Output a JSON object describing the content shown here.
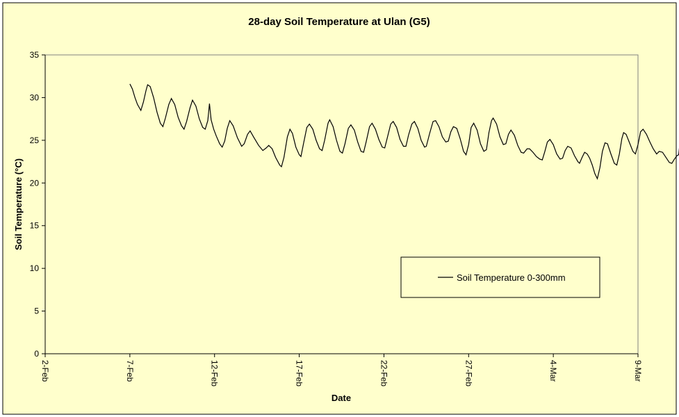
{
  "chart_data": {
    "type": "line",
    "title": "28-day  Soil Temperature at Ulan (G5)",
    "xlabel": "Date",
    "ylabel": "Soil Temperature (°C)",
    "y_ticks": [
      "0",
      "5",
      "10",
      "15",
      "20",
      "25",
      "30",
      "35"
    ],
    "ylim": [
      0,
      35
    ],
    "x_ticks": [
      "2-Feb",
      "7-Feb",
      "12-Feb",
      "17-Feb",
      "22-Feb",
      "27-Feb",
      "4-Mar",
      "9-Mar"
    ],
    "xlim_days": [
      0,
      35
    ],
    "grid": false,
    "legend_placement": "lower-right",
    "colors": {
      "page_background": "#FFFFCC",
      "plot_background": "#FFFFCC",
      "line": "#000000",
      "legend_background": "#FFFFCC"
    },
    "series": [
      {
        "name": "Soil Temperature 0-300mm",
        "points_day_temp": [
          [
            5.0,
            31.6
          ],
          [
            5.15,
            31.0
          ],
          [
            5.3,
            30.0
          ],
          [
            5.45,
            29.2
          ],
          [
            5.65,
            28.5
          ],
          [
            5.8,
            29.5
          ],
          [
            5.95,
            30.8
          ],
          [
            6.05,
            31.5
          ],
          [
            6.2,
            31.3
          ],
          [
            6.4,
            30.0
          ],
          [
            6.6,
            28.3
          ],
          [
            6.8,
            27.0
          ],
          [
            6.95,
            26.6
          ],
          [
            7.1,
            27.6
          ],
          [
            7.3,
            29.2
          ],
          [
            7.45,
            29.9
          ],
          [
            7.65,
            29.2
          ],
          [
            7.85,
            27.7
          ],
          [
            8.05,
            26.7
          ],
          [
            8.2,
            26.3
          ],
          [
            8.35,
            27.2
          ],
          [
            8.55,
            28.8
          ],
          [
            8.7,
            29.7
          ],
          [
            8.9,
            29.0
          ],
          [
            9.1,
            27.5
          ],
          [
            9.3,
            26.5
          ],
          [
            9.45,
            26.3
          ],
          [
            9.6,
            27.3
          ],
          [
            9.7,
            29.3
          ],
          [
            9.8,
            27.4
          ],
          [
            9.95,
            26.3
          ],
          [
            10.1,
            25.5
          ],
          [
            10.3,
            24.6
          ],
          [
            10.45,
            24.2
          ],
          [
            10.6,
            24.9
          ],
          [
            10.75,
            26.4
          ],
          [
            10.9,
            27.3
          ],
          [
            11.1,
            26.7
          ],
          [
            11.35,
            25.3
          ],
          [
            11.6,
            24.3
          ],
          [
            11.75,
            24.6
          ],
          [
            11.95,
            25.7
          ],
          [
            12.1,
            26.1
          ],
          [
            12.3,
            25.4
          ],
          [
            12.6,
            24.4
          ],
          [
            12.85,
            23.8
          ],
          [
            13.05,
            24.1
          ],
          [
            13.2,
            24.4
          ],
          [
            13.4,
            24.0
          ],
          [
            13.6,
            23.0
          ],
          [
            13.85,
            22.1
          ],
          [
            13.95,
            21.9
          ],
          [
            14.1,
            23.0
          ],
          [
            14.3,
            25.4
          ],
          [
            14.45,
            26.3
          ],
          [
            14.6,
            25.8
          ],
          [
            14.8,
            24.2
          ],
          [
            15.0,
            23.3
          ],
          [
            15.1,
            23.1
          ],
          [
            15.25,
            24.6
          ],
          [
            15.45,
            26.5
          ],
          [
            15.6,
            26.9
          ],
          [
            15.8,
            26.3
          ],
          [
            16.0,
            25.0
          ],
          [
            16.2,
            24.0
          ],
          [
            16.35,
            23.8
          ],
          [
            16.5,
            25.0
          ],
          [
            16.7,
            27.0
          ],
          [
            16.8,
            27.4
          ],
          [
            17.0,
            26.6
          ],
          [
            17.2,
            25.0
          ],
          [
            17.4,
            23.7
          ],
          [
            17.55,
            23.5
          ],
          [
            17.7,
            24.6
          ],
          [
            17.9,
            26.4
          ],
          [
            18.05,
            26.8
          ],
          [
            18.25,
            26.2
          ],
          [
            18.45,
            24.8
          ],
          [
            18.65,
            23.7
          ],
          [
            18.8,
            23.6
          ],
          [
            18.95,
            24.8
          ],
          [
            19.15,
            26.6
          ],
          [
            19.3,
            27.0
          ],
          [
            19.5,
            26.3
          ],
          [
            19.7,
            25.1
          ],
          [
            19.9,
            24.2
          ],
          [
            20.05,
            24.1
          ],
          [
            20.2,
            25.3
          ],
          [
            20.4,
            26.9
          ],
          [
            20.55,
            27.2
          ],
          [
            20.75,
            26.5
          ],
          [
            20.95,
            25.1
          ],
          [
            21.15,
            24.3
          ],
          [
            21.3,
            24.3
          ],
          [
            21.45,
            25.6
          ],
          [
            21.65,
            26.9
          ],
          [
            21.8,
            27.2
          ],
          [
            22.0,
            26.4
          ],
          [
            22.2,
            25.0
          ],
          [
            22.4,
            24.2
          ],
          [
            22.5,
            24.3
          ],
          [
            22.7,
            25.8
          ],
          [
            22.9,
            27.2
          ],
          [
            23.05,
            27.3
          ],
          [
            23.25,
            26.6
          ],
          [
            23.45,
            25.4
          ],
          [
            23.65,
            24.8
          ],
          [
            23.8,
            24.9
          ],
          [
            23.95,
            26.0
          ],
          [
            24.1,
            26.6
          ],
          [
            24.3,
            26.4
          ],
          [
            24.5,
            25.2
          ],
          [
            24.7,
            23.7
          ],
          [
            24.85,
            23.3
          ],
          [
            25.0,
            24.5
          ],
          [
            25.15,
            26.5
          ],
          [
            25.3,
            27.0
          ],
          [
            25.5,
            26.2
          ],
          [
            25.7,
            24.6
          ],
          [
            25.9,
            23.7
          ],
          [
            26.05,
            23.9
          ],
          [
            26.2,
            25.9
          ],
          [
            26.35,
            27.3
          ],
          [
            26.45,
            27.6
          ],
          [
            26.65,
            26.9
          ],
          [
            26.85,
            25.4
          ],
          [
            27.05,
            24.5
          ],
          [
            27.2,
            24.6
          ],
          [
            27.35,
            25.7
          ],
          [
            27.5,
            26.2
          ],
          [
            27.7,
            25.6
          ],
          [
            27.9,
            24.4
          ],
          [
            28.1,
            23.6
          ],
          [
            28.25,
            23.5
          ],
          [
            28.45,
            24.0
          ],
          [
            28.6,
            24.0
          ],
          [
            28.8,
            23.6
          ],
          [
            29.0,
            23.1
          ],
          [
            29.2,
            22.8
          ],
          [
            29.35,
            22.7
          ],
          [
            29.5,
            23.7
          ],
          [
            29.65,
            24.8
          ],
          [
            29.8,
            25.1
          ],
          [
            30.0,
            24.5
          ],
          [
            30.2,
            23.4
          ],
          [
            30.4,
            22.8
          ],
          [
            30.55,
            22.9
          ],
          [
            30.7,
            23.8
          ],
          [
            30.85,
            24.3
          ],
          [
            31.05,
            24.1
          ],
          [
            31.25,
            23.2
          ],
          [
            31.45,
            22.5
          ],
          [
            31.55,
            22.3
          ],
          [
            31.7,
            23.0
          ],
          [
            31.85,
            23.6
          ],
          [
            32.0,
            23.4
          ],
          [
            32.15,
            22.9
          ],
          [
            32.3,
            22.1
          ],
          [
            32.45,
            21.1
          ],
          [
            32.6,
            20.5
          ],
          [
            32.75,
            21.8
          ],
          [
            32.9,
            23.7
          ],
          [
            33.05,
            24.7
          ],
          [
            33.2,
            24.6
          ],
          [
            33.4,
            23.4
          ],
          [
            33.6,
            22.3
          ],
          [
            33.75,
            22.1
          ],
          [
            33.9,
            23.4
          ],
          [
            34.05,
            25.2
          ],
          [
            34.15,
            25.9
          ],
          [
            34.3,
            25.7
          ],
          [
            34.5,
            24.7
          ],
          [
            34.7,
            23.7
          ],
          [
            34.85,
            23.4
          ],
          [
            35.0,
            24.5
          ],
          [
            35.15,
            26.0
          ],
          [
            35.3,
            26.3
          ],
          [
            35.5,
            25.7
          ],
          [
            35.7,
            24.8
          ],
          [
            35.9,
            24.0
          ],
          [
            36.1,
            23.4
          ],
          [
            36.25,
            23.7
          ],
          [
            36.45,
            23.6
          ],
          [
            36.65,
            23.0
          ],
          [
            36.85,
            22.4
          ],
          [
            37.0,
            22.3
          ],
          [
            37.15,
            22.8
          ],
          [
            37.3,
            23.2
          ],
          [
            37.4,
            23.3
          ],
          [
            37.45,
            24.2
          ]
        ]
      }
    ]
  }
}
